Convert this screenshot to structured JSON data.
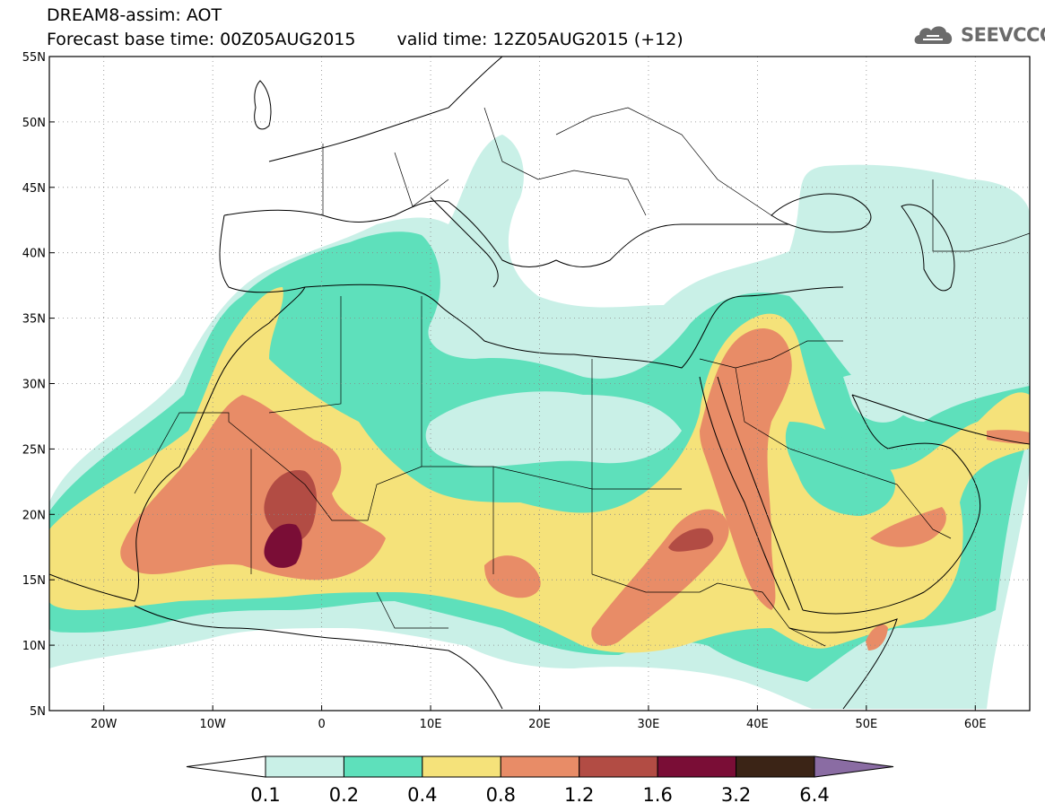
{
  "header": {
    "title_line1": "DREAM8-assim: AOT",
    "base_time": "Forecast base time: 00Z05AUG2015",
    "valid_time": "valid time: 12Z05AUG2015 (+12)"
  },
  "logo": {
    "text": "SEEVCCC",
    "icon": "cloud-icon"
  },
  "map": {
    "projection": "lat-lon",
    "lon_range": [
      -25,
      65
    ],
    "lat_range": [
      5,
      55
    ],
    "lat_ticks": [
      {
        "value": 55,
        "label": "55N"
      },
      {
        "value": 50,
        "label": "50N"
      },
      {
        "value": 45,
        "label": "45N"
      },
      {
        "value": 40,
        "label": "40N"
      },
      {
        "value": 35,
        "label": "35N"
      },
      {
        "value": 30,
        "label": "30N"
      },
      {
        "value": 25,
        "label": "25N"
      },
      {
        "value": 20,
        "label": "20N"
      },
      {
        "value": 15,
        "label": "15N"
      },
      {
        "value": 10,
        "label": "10N"
      },
      {
        "value": 5,
        "label": "5N"
      }
    ],
    "lon_ticks": [
      {
        "value": -20,
        "label": "20W"
      },
      {
        "value": -10,
        "label": "10W"
      },
      {
        "value": 0,
        "label": "0"
      },
      {
        "value": 10,
        "label": "10E"
      },
      {
        "value": 20,
        "label": "20E"
      },
      {
        "value": 30,
        "label": "30E"
      },
      {
        "value": 40,
        "label": "40E"
      },
      {
        "value": 50,
        "label": "50E"
      },
      {
        "value": 60,
        "label": "60E"
      }
    ],
    "grid": "dotted",
    "colors": {
      "0.1-0.2": "#c9f0e7",
      "0.2-0.4": "#5ee0bb",
      "0.4-0.8": "#f5e27a",
      "0.8-1.2": "#e88c67",
      "1.2-1.6": "#b24c44",
      "1.6-3.2": "#7a0d36",
      "3.2-6.4": "#3b2416",
      "above-6.4": "#8a6ca3"
    }
  },
  "colorbar": {
    "labels": [
      "0.1",
      "0.2",
      "0.4",
      "0.8",
      "1.2",
      "1.6",
      "3.2",
      "6.4"
    ],
    "colors": [
      "#ffffff",
      "#c9f0e7",
      "#5ee0bb",
      "#f5e27a",
      "#e88c67",
      "#b24c44",
      "#7a0d36",
      "#3b2416",
      "#8a6ca3"
    ]
  }
}
